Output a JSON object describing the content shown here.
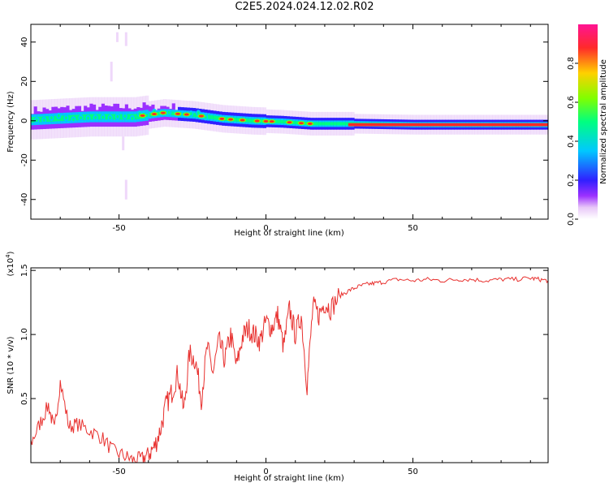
{
  "title": "C2E5.2024.024.12.02.R02",
  "colors": {
    "snr_line": "#e8312f",
    "frame": "#000000",
    "background": "#ffffff",
    "colormap": [
      "#ffffff",
      "#e8c8f8",
      "#9b30ff",
      "#3020ff",
      "#00c8ff",
      "#00ff80",
      "#80ff00",
      "#ffd000",
      "#ff2a2a",
      "#ff1493"
    ]
  },
  "chart_data": [
    {
      "type": "heatmap",
      "xlabel": "Height of straight line (km)",
      "ylabel": "Frequency (Hz)",
      "xlim": [
        -80,
        96
      ],
      "ylim": [
        -50,
        49
      ],
      "xticks": [
        -50,
        0,
        50
      ],
      "xtick_labels": [
        "-50",
        "0",
        "50"
      ],
      "yticks": [
        -40,
        -20,
        0,
        20,
        40
      ],
      "ytick_labels": [
        "-40",
        "-20",
        "0",
        "20",
        "40"
      ],
      "ridge": {
        "description_values": "center frequency (Hz) vs height (km)",
        "x": [
          -80,
          -60,
          -45,
          -35,
          -25,
          -15,
          -5,
          5,
          15,
          30,
          50,
          70,
          96
        ],
        "y": [
          0.5,
          2,
          2,
          4,
          3,
          1,
          0,
          -0.5,
          -1.5,
          -1.5,
          -2,
          -2,
          -2
        ]
      },
      "colorbar": {
        "label": "Normalized spectral amplitude",
        "ticks": [
          0.0,
          0.2,
          0.4,
          0.6,
          0.8
        ],
        "tick_labels": [
          "0.0",
          "0.2",
          "0.4",
          "0.6",
          "0.8"
        ],
        "range": [
          0,
          1
        ]
      }
    },
    {
      "type": "line",
      "xlabel": "Height of straight line (km)",
      "ylabel": "SNR (10 * v/v)",
      "scale_label": "(x10",
      "scale_exp": "4",
      "scale_close": ")",
      "xlim": [
        -80,
        96
      ],
      "ylim": [
        0,
        15200
      ],
      "xticks": [
        -50,
        0,
        50
      ],
      "xtick_labels": [
        "-50",
        "0",
        "50"
      ],
      "yticks": [
        5000,
        10000,
        15000
      ],
      "ytick_labels": [
        "0.5",
        "1.0",
        "1.5"
      ],
      "series": [
        {
          "x": [
            -80,
            -77,
            -74,
            -72,
            -70,
            -67,
            -64,
            -60,
            -56,
            -52,
            -48,
            -45,
            -42,
            -40,
            -38,
            -36,
            -34,
            -32,
            -30,
            -28,
            -26,
            -24,
            -22,
            -20,
            -18,
            -16,
            -14,
            -12,
            -10,
            -8,
            -6,
            -4,
            -2,
            0,
            2,
            4,
            6,
            8,
            10,
            12,
            14,
            16,
            18,
            20,
            22,
            25,
            28,
            31,
            34,
            37,
            40,
            45,
            50,
            55,
            60,
            65,
            70,
            75,
            80,
            85,
            90,
            93,
            96
          ],
          "y": [
            1500,
            3000,
            4500,
            2500,
            6300,
            2800,
            3000,
            2500,
            2000,
            900,
            500,
            200,
            300,
            700,
            1200,
            2500,
            4500,
            5500,
            7000,
            4000,
            8500,
            8000,
            5000,
            9000,
            7000,
            9500,
            8000,
            10000,
            7500,
            9800,
            10500,
            10000,
            9500,
            11000,
            10500,
            11500,
            9000,
            12000,
            10000,
            11500,
            6000,
            12200,
            11500,
            12500,
            12000,
            13000,
            13400,
            13700,
            13900,
            14000,
            14100,
            14300,
            14200,
            14300,
            14200,
            14300,
            14300,
            14200,
            14300,
            14300,
            14400,
            14300,
            14200
          ]
        }
      ]
    }
  ]
}
